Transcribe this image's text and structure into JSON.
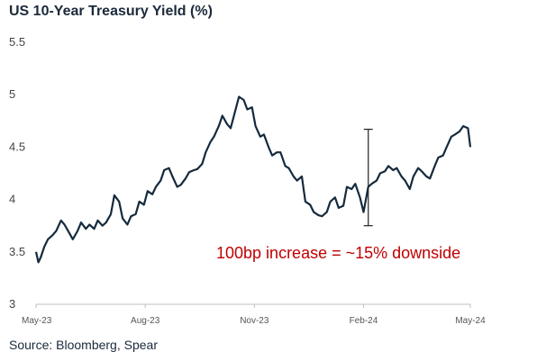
{
  "chart_data": {
    "type": "line",
    "title": "US 10-Year Treasury Yield (%)",
    "source": "Source: Bloomberg, Spear",
    "xlabel": "",
    "ylabel": "",
    "ylim": [
      3,
      5.5
    ],
    "yticks": [
      3,
      3.5,
      4,
      4.5,
      5,
      5.5
    ],
    "ytick_labels": [
      "3",
      "3.5",
      "4",
      "4.5",
      "5",
      "5.5"
    ],
    "xlim": [
      "2023-05-01",
      "2024-05-01"
    ],
    "xticks": [
      {
        "date": "2023-05-01",
        "label": "May-23"
      },
      {
        "date": "2023-08-01",
        "label": "Aug-23"
      },
      {
        "date": "2023-11-01",
        "label": "Nov-23"
      },
      {
        "date": "2024-02-01",
        "label": "Feb-24"
      },
      {
        "date": "2024-05-01",
        "label": "May-24"
      }
    ],
    "grid": false,
    "line_color": "#152a3d",
    "series": [
      {
        "x": [
          "2023-05-01",
          "2023-05-03",
          "2023-05-05",
          "2023-05-08",
          "2023-05-11",
          "2023-05-15",
          "2023-05-18",
          "2023-05-22",
          "2023-05-25",
          "2023-05-29",
          "2023-06-01",
          "2023-06-05",
          "2023-06-08",
          "2023-06-12",
          "2023-06-15",
          "2023-06-19",
          "2023-06-22",
          "2023-06-26",
          "2023-06-29",
          "2023-07-03",
          "2023-07-06",
          "2023-07-10",
          "2023-07-13",
          "2023-07-17",
          "2023-07-20",
          "2023-07-24",
          "2023-07-27",
          "2023-07-31",
          "2023-08-03",
          "2023-08-07",
          "2023-08-10",
          "2023-08-14",
          "2023-08-17",
          "2023-08-21",
          "2023-08-24",
          "2023-08-28",
          "2023-08-31",
          "2023-09-04",
          "2023-09-07",
          "2023-09-11",
          "2023-09-14",
          "2023-09-18",
          "2023-09-21",
          "2023-09-25",
          "2023-09-28",
          "2023-10-02",
          "2023-10-05",
          "2023-10-09",
          "2023-10-12",
          "2023-10-16",
          "2023-10-19",
          "2023-10-23",
          "2023-10-26",
          "2023-10-30",
          "2023-11-02",
          "2023-11-06",
          "2023-11-09",
          "2023-11-13",
          "2023-11-16",
          "2023-11-20",
          "2023-11-23",
          "2023-11-27",
          "2023-11-30",
          "2023-12-04",
          "2023-12-07",
          "2023-12-11",
          "2023-12-14",
          "2023-12-18",
          "2023-12-21",
          "2023-12-25",
          "2023-12-28",
          "2024-01-01",
          "2024-01-04",
          "2024-01-08",
          "2024-01-11",
          "2024-01-15",
          "2024-01-18",
          "2024-01-22",
          "2024-01-25",
          "2024-01-29",
          "2024-02-01",
          "2024-02-05",
          "2024-02-08",
          "2024-02-12",
          "2024-02-15",
          "2024-02-19",
          "2024-02-22",
          "2024-02-26",
          "2024-02-29",
          "2024-03-04",
          "2024-03-07",
          "2024-03-11",
          "2024-03-14",
          "2024-03-18",
          "2024-03-21",
          "2024-03-25",
          "2024-03-28",
          "2024-04-01",
          "2024-04-04",
          "2024-04-08",
          "2024-04-11",
          "2024-04-15",
          "2024-04-18",
          "2024-04-22",
          "2024-04-25",
          "2024-04-29",
          "2024-05-01"
        ],
        "values": [
          3.5,
          3.4,
          3.45,
          3.55,
          3.62,
          3.66,
          3.7,
          3.8,
          3.76,
          3.68,
          3.62,
          3.7,
          3.78,
          3.72,
          3.76,
          3.72,
          3.8,
          3.75,
          3.78,
          3.86,
          4.04,
          3.98,
          3.82,
          3.76,
          3.84,
          3.86,
          3.98,
          3.95,
          4.08,
          4.05,
          4.12,
          4.18,
          4.28,
          4.3,
          4.22,
          4.12,
          4.14,
          4.2,
          4.26,
          4.28,
          4.29,
          4.34,
          4.45,
          4.55,
          4.6,
          4.7,
          4.8,
          4.72,
          4.68,
          4.85,
          4.98,
          4.95,
          4.86,
          4.88,
          4.7,
          4.6,
          4.62,
          4.5,
          4.42,
          4.45,
          4.45,
          4.32,
          4.3,
          4.22,
          4.18,
          4.22,
          3.98,
          3.95,
          3.88,
          3.85,
          3.84,
          3.88,
          3.98,
          4.02,
          3.92,
          3.94,
          4.12,
          4.1,
          4.15,
          4.02,
          3.88,
          4.12,
          4.15,
          4.18,
          4.25,
          4.27,
          4.32,
          4.28,
          4.3,
          4.22,
          4.18,
          4.1,
          4.22,
          4.3,
          4.27,
          4.22,
          4.2,
          4.32,
          4.4,
          4.42,
          4.5,
          4.6,
          4.62,
          4.65,
          4.7,
          4.68,
          4.5
        ]
      }
    ],
    "annotations": [
      {
        "type": "range-bar",
        "date": "2024-02-05",
        "y_low": 3.75,
        "y_high": 4.67
      },
      {
        "type": "text",
        "text": "100bp increase = ~15% downside",
        "color": "#c00000"
      }
    ]
  }
}
